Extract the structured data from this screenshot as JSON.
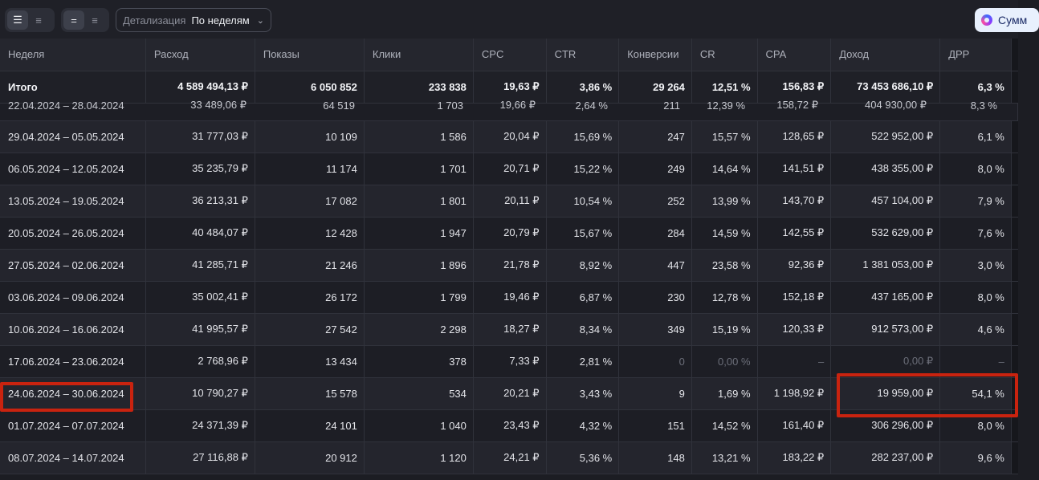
{
  "toolbar": {
    "detail_label": "Детализация",
    "detail_value": "По неделям",
    "sum_label": "Сумм"
  },
  "table": {
    "columns": [
      "Неделя",
      "Расход",
      "Показы",
      "Клики",
      "CPC",
      "CTR",
      "Конверсии",
      "CR",
      "CPA",
      "Доход",
      "ДРР"
    ],
    "total": [
      "Итого",
      "4 589 494,13 ₽",
      "6 050 852",
      "233 838",
      "19,63 ₽",
      "3,86 %",
      "29 264",
      "12,51 %",
      "156,83 ₽",
      "73 453 686,10 ₽",
      "6,3 %"
    ],
    "partial_row": [
      "22.04.2024 – 28.04.2024",
      "33 489,06 ₽",
      "64 519",
      "1 703",
      "19,66 ₽",
      "2,64 %",
      "211",
      "12,39 %",
      "158,72 ₽",
      "404 930,00 ₽",
      "8,3 %"
    ],
    "rows": [
      [
        "29.04.2024 – 05.05.2024",
        "31 777,03 ₽",
        "10 109",
        "1 586",
        "20,04 ₽",
        "15,69 %",
        "247",
        "15,57 %",
        "128,65 ₽",
        "522 952,00 ₽",
        "6,1 %"
      ],
      [
        "06.05.2024 – 12.05.2024",
        "35 235,79 ₽",
        "11 174",
        "1 701",
        "20,71 ₽",
        "15,22 %",
        "249",
        "14,64 %",
        "141,51 ₽",
        "438 355,00 ₽",
        "8,0 %"
      ],
      [
        "13.05.2024 – 19.05.2024",
        "36 213,31 ₽",
        "17 082",
        "1 801",
        "20,11 ₽",
        "10,54 %",
        "252",
        "13,99 %",
        "143,70 ₽",
        "457 104,00 ₽",
        "7,9 %"
      ],
      [
        "20.05.2024 – 26.05.2024",
        "40 484,07 ₽",
        "12 428",
        "1 947",
        "20,79 ₽",
        "15,67 %",
        "284",
        "14,59 %",
        "142,55 ₽",
        "532 629,00 ₽",
        "7,6 %"
      ],
      [
        "27.05.2024 – 02.06.2024",
        "41 285,71 ₽",
        "21 246",
        "1 896",
        "21,78 ₽",
        "8,92 %",
        "447",
        "23,58 %",
        "92,36 ₽",
        "1 381 053,00 ₽",
        "3,0 %"
      ],
      [
        "03.06.2024 – 09.06.2024",
        "35 002,41 ₽",
        "26 172",
        "1 799",
        "19,46 ₽",
        "6,87 %",
        "230",
        "12,78 %",
        "152,18 ₽",
        "437 165,00 ₽",
        "8,0 %"
      ],
      [
        "10.06.2024 – 16.06.2024",
        "41 995,57 ₽",
        "27 542",
        "2 298",
        "18,27 ₽",
        "8,34 %",
        "349",
        "15,19 %",
        "120,33 ₽",
        "912 573,00 ₽",
        "4,6 %"
      ],
      [
        "17.06.2024 – 23.06.2024",
        "2 768,96 ₽",
        "13 434",
        "378",
        "7,33 ₽",
        "2,81 %",
        "0",
        "0,00 %",
        "–",
        "0,00 ₽",
        "–"
      ],
      [
        "24.06.2024 – 30.06.2024",
        "10 790,27 ₽",
        "15 578",
        "534",
        "20,21 ₽",
        "3,43 %",
        "9",
        "1,69 %",
        "1 198,92 ₽",
        "19 959,00 ₽",
        "54,1 %"
      ],
      [
        "01.07.2024 – 07.07.2024",
        "24 371,39 ₽",
        "24 101",
        "1 040",
        "23,43 ₽",
        "4,32 %",
        "151",
        "14,52 %",
        "161,40 ₽",
        "306 296,00 ₽",
        "8,0 %"
      ],
      [
        "08.07.2024 – 14.07.2024",
        "27 116,88 ₽",
        "20 912",
        "1 120",
        "24,21 ₽",
        "5,36 %",
        "148",
        "13,21 %",
        "183,22 ₽",
        "282 237,00 ₽",
        "9,6 %"
      ]
    ],
    "dim_row_index": 7,
    "dim_cols": [
      6,
      7,
      8,
      9,
      10
    ]
  },
  "highlight_color": "#c9230f"
}
